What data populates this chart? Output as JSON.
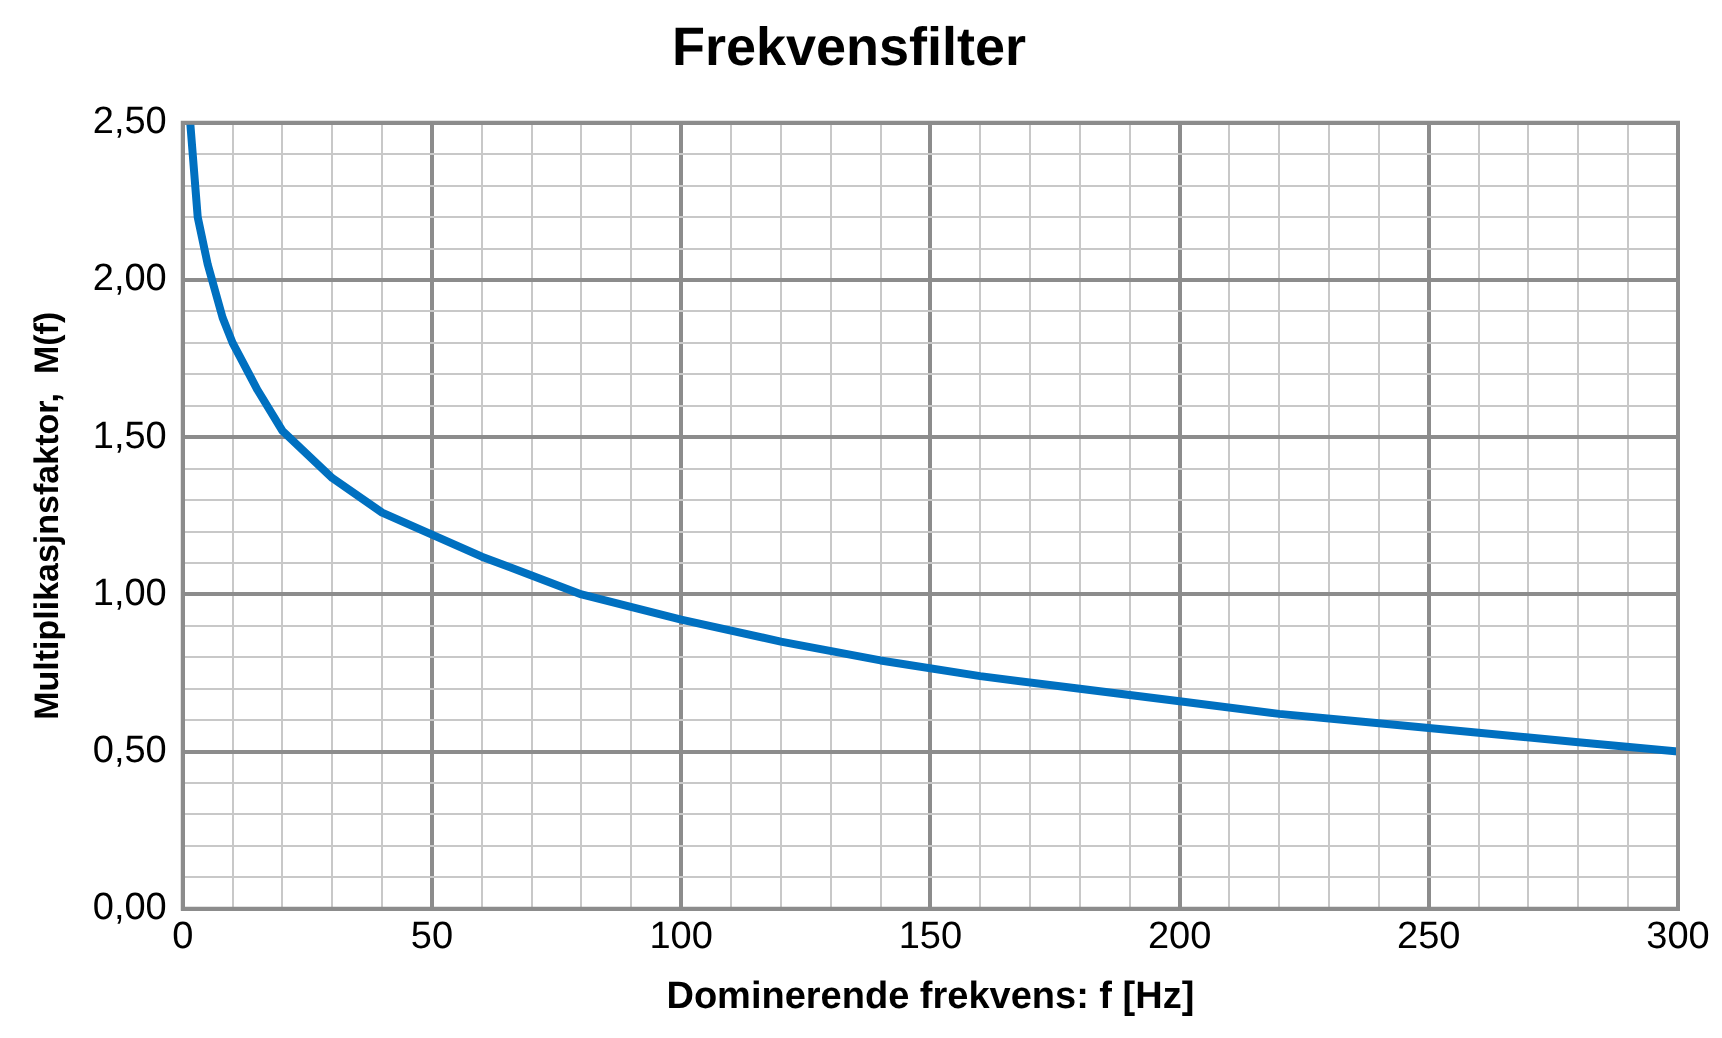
{
  "chart_data": {
    "type": "line",
    "title": "Frekvensfilter",
    "xlabel": "Dominerende frekvens: f [Hz]",
    "ylabel": "Multiplikasjnsfaktor,  M(f)",
    "xlim": [
      0,
      300
    ],
    "xticks": [
      0,
      {
        "value": 10,
        "label": null
      },
      {
        "value": 20,
        "label": null
      },
      {
        "value": 30,
        "label": null
      },
      {
        "value": 40,
        "label": null
      },
      50,
      {
        "value": 60,
        "label": null
      },
      {
        "value": 70,
        "label": null
      },
      {
        "value": 80,
        "label": null
      },
      {
        "value": 90,
        "label": null
      },
      100,
      {
        "value": 110,
        "label": null
      },
      {
        "value": 120,
        "label": null
      },
      {
        "value": 130,
        "label": null
      },
      {
        "value": 140,
        "label": null
      },
      150,
      {
        "value": 160,
        "label": null
      },
      {
        "value": 170,
        "label": null
      },
      {
        "value": 180,
        "label": null
      },
      {
        "value": 190,
        "label": null
      },
      200,
      {
        "value": 210,
        "label": null
      },
      {
        "value": 220,
        "label": null
      },
      {
        "value": 230,
        "label": null
      },
      {
        "value": 240,
        "label": null
      },
      250,
      {
        "value": 260,
        "label": null
      },
      {
        "value": 270,
        "label": null
      },
      {
        "value": 280,
        "label": null
      },
      {
        "value": 290,
        "label": null
      },
      300
    ],
    "ylim": [
      0,
      2.5
    ],
    "yticks": [
      {
        "value": 0,
        "label": "0,00"
      },
      {
        "value": 0.1,
        "label": null
      },
      {
        "value": 0.2,
        "label": null
      },
      {
        "value": 0.3,
        "label": null
      },
      {
        "value": 0.4,
        "label": null
      },
      {
        "value": 0.5,
        "label": "0,50"
      },
      {
        "value": 0.6,
        "label": null
      },
      {
        "value": 0.7,
        "label": null
      },
      {
        "value": 0.8,
        "label": null
      },
      {
        "value": 0.9,
        "label": null
      },
      {
        "value": 1,
        "label": "1,00"
      },
      {
        "value": 1.1,
        "label": null
      },
      {
        "value": 1.2,
        "label": null
      },
      {
        "value": 1.3,
        "label": null
      },
      {
        "value": 1.4,
        "label": null
      },
      {
        "value": 1.5,
        "label": "1,50"
      },
      {
        "value": 1.6,
        "label": null
      },
      {
        "value": 1.7,
        "label": null
      },
      {
        "value": 1.8,
        "label": null
      },
      {
        "value": 1.9,
        "label": null
      },
      {
        "value": 2,
        "label": "2,00"
      },
      {
        "value": 2.1,
        "label": null
      },
      {
        "value": 2.2,
        "label": null
      },
      {
        "value": 2.3,
        "label": null
      },
      {
        "value": 2.4,
        "label": null
      },
      {
        "value": 2.5,
        "label": "2,50"
      }
    ],
    "grid": true,
    "legend": false,
    "marker": "none",
    "line_style": "solid",
    "series": [
      {
        "color": "#0070c0",
        "x": [
          1.5,
          3,
          5,
          8,
          10,
          15,
          20,
          30,
          40,
          50,
          60,
          70,
          80,
          100,
          120,
          140,
          160,
          180,
          200,
          220,
          240,
          260,
          280,
          300
        ],
        "values": [
          2.5,
          2.2,
          2.05,
          1.88,
          1.8,
          1.65,
          1.52,
          1.37,
          1.26,
          1.19,
          1.12,
          1.06,
          1.0,
          0.92,
          0.85,
          0.79,
          0.74,
          0.7,
          0.66,
          0.62,
          0.59,
          0.56,
          0.53,
          0.5
        ]
      }
    ]
  }
}
